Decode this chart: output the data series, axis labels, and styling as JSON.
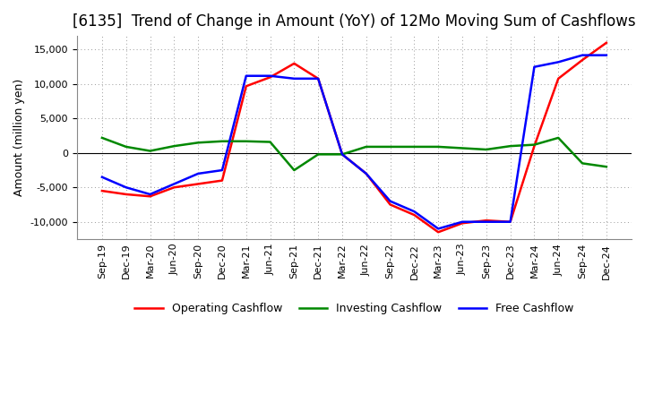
{
  "title": "[6135]  Trend of Change in Amount (YoY) of 12Mo Moving Sum of Cashflows",
  "ylabel": "Amount (million yen)",
  "x_labels": [
    "Sep-19",
    "Dec-19",
    "Mar-20",
    "Jun-20",
    "Sep-20",
    "Dec-20",
    "Mar-21",
    "Jun-21",
    "Sep-21",
    "Dec-21",
    "Mar-22",
    "Jun-22",
    "Sep-22",
    "Dec-22",
    "Mar-23",
    "Jun-23",
    "Sep-23",
    "Dec-23",
    "Mar-24",
    "Jun-24",
    "Sep-24",
    "Dec-24"
  ],
  "operating": [
    -5500,
    -6000,
    -6300,
    -5000,
    -4500,
    -4000,
    9700,
    11000,
    13000,
    10800,
    -200,
    -3000,
    -7500,
    -9000,
    -11500,
    -10200,
    -9800,
    -10000,
    1000,
    10800,
    13500,
    16000
  ],
  "investing": [
    2200,
    900,
    300,
    1000,
    1500,
    1700,
    1700,
    1600,
    -2500,
    -200,
    -200,
    900,
    900,
    900,
    900,
    700,
    500,
    1000,
    1200,
    2200,
    -1500,
    -2000
  ],
  "free": [
    -3500,
    -5000,
    -6000,
    -4500,
    -3000,
    -2500,
    11200,
    11200,
    10800,
    10800,
    -200,
    -3000,
    -7000,
    -8500,
    -11000,
    -10000,
    -10000,
    -10000,
    12500,
    13200,
    14200,
    14200
  ],
  "operating_color": "#ff0000",
  "investing_color": "#008800",
  "free_color": "#0000ff",
  "ylim": [
    -12500,
    17000
  ],
  "yticks": [
    -10000,
    -5000,
    0,
    5000,
    10000,
    15000
  ],
  "background_color": "#ffffff",
  "grid_color": "#999999",
  "title_fontsize": 12,
  "axis_fontsize": 9,
  "tick_fontsize": 8,
  "legend_fontsize": 9
}
